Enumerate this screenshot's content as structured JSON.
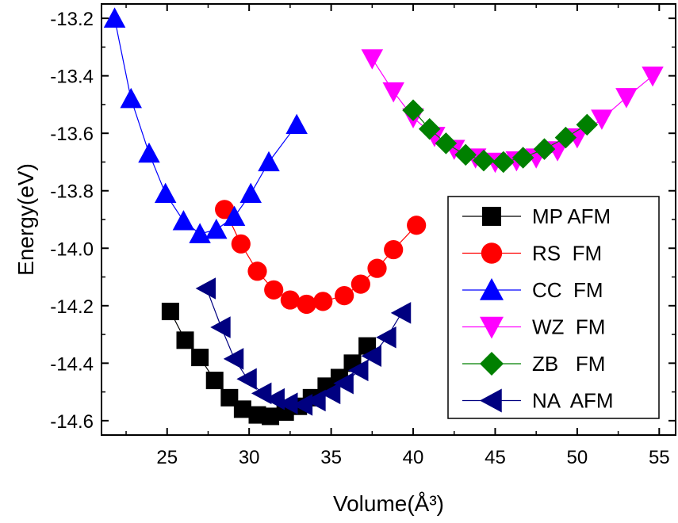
{
  "chart_data": {
    "type": "line",
    "xlabel": "Volume(Å³)",
    "ylabel": "Energy(eV)",
    "xlim": [
      21,
      56
    ],
    "ylim": [
      -14.65,
      -13.15
    ],
    "xticks": [
      25,
      30,
      35,
      40,
      45,
      50,
      55
    ],
    "yticks": [
      -14.6,
      -14.4,
      -14.2,
      -14.0,
      -13.8,
      -13.6,
      -13.4,
      -13.2
    ],
    "xtick_labels": [
      "25",
      "30",
      "35",
      "40",
      "45",
      "50",
      "55"
    ],
    "ytick_labels": [
      "-14.6",
      "-14.4",
      "-14.2",
      "-14.0",
      "-13.8",
      "-13.6",
      "-13.4",
      "-13.2"
    ],
    "grid": false,
    "legend_position": "right",
    "series": [
      {
        "name": "MP AFM",
        "marker": "square",
        "color": "#000000",
        "x": [
          25.2,
          26.1,
          27.0,
          27.9,
          28.8,
          29.6,
          30.5,
          31.3,
          32.2,
          33.0,
          33.8,
          34.7,
          35.5,
          36.3,
          37.2
        ],
        "y": [
          -14.22,
          -14.32,
          -14.38,
          -14.46,
          -14.52,
          -14.56,
          -14.58,
          -14.585,
          -14.57,
          -14.55,
          -14.52,
          -14.48,
          -14.45,
          -14.4,
          -14.34
        ]
      },
      {
        "name": "RS  FM",
        "marker": "circle",
        "color": "#ff0000",
        "x": [
          28.5,
          29.5,
          30.5,
          31.5,
          32.5,
          33.5,
          34.5,
          35.8,
          36.8,
          37.8,
          38.8,
          40.2
        ],
        "y": [
          -13.865,
          -13.985,
          -14.08,
          -14.145,
          -14.18,
          -14.195,
          -14.185,
          -14.165,
          -14.125,
          -14.07,
          -14.005,
          -13.92
        ]
      },
      {
        "name": "CC  FM",
        "marker": "triangle-up",
        "color": "#0000ff",
        "x": [
          21.8,
          22.8,
          23.9,
          24.9,
          26.0,
          27.0,
          28.0,
          29.1,
          30.1,
          31.2,
          32.9
        ],
        "y": [
          -13.2,
          -13.48,
          -13.67,
          -13.81,
          -13.905,
          -13.95,
          -13.935,
          -13.89,
          -13.81,
          -13.7,
          -13.57
        ]
      },
      {
        "name": "WZ  FM",
        "marker": "triangle-down",
        "color": "#ff00ff",
        "x": [
          37.5,
          38.8,
          40.0,
          41.3,
          42.5,
          43.8,
          45.0,
          46.3,
          47.5,
          48.8,
          50.0,
          51.5,
          53.0,
          54.6
        ],
        "y": [
          -13.34,
          -13.455,
          -13.545,
          -13.61,
          -13.655,
          -13.685,
          -13.7,
          -13.695,
          -13.685,
          -13.66,
          -13.615,
          -13.55,
          -13.475,
          -13.4
        ]
      },
      {
        "name": "ZB   FM",
        "marker": "diamond",
        "color": "#008000",
        "x": [
          40.0,
          41.0,
          42.0,
          43.2,
          44.3,
          45.5,
          46.7,
          48.0,
          49.3,
          50.6
        ],
        "y": [
          -13.52,
          -13.585,
          -13.635,
          -13.675,
          -13.695,
          -13.7,
          -13.685,
          -13.655,
          -13.615,
          -13.57
        ]
      },
      {
        "name": "NA  AFM",
        "marker": "triangle-left",
        "color": "#000080",
        "x": [
          27.4,
          28.3,
          29.1,
          29.9,
          30.8,
          31.6,
          32.4,
          33.3,
          34.1,
          35.0,
          35.8,
          36.7,
          37.5,
          38.4,
          39.3
        ],
        "y": [
          -14.14,
          -14.275,
          -14.385,
          -14.455,
          -14.505,
          -14.525,
          -14.54,
          -14.545,
          -14.53,
          -14.505,
          -14.47,
          -14.425,
          -14.375,
          -14.31,
          -14.225
        ]
      }
    ]
  }
}
